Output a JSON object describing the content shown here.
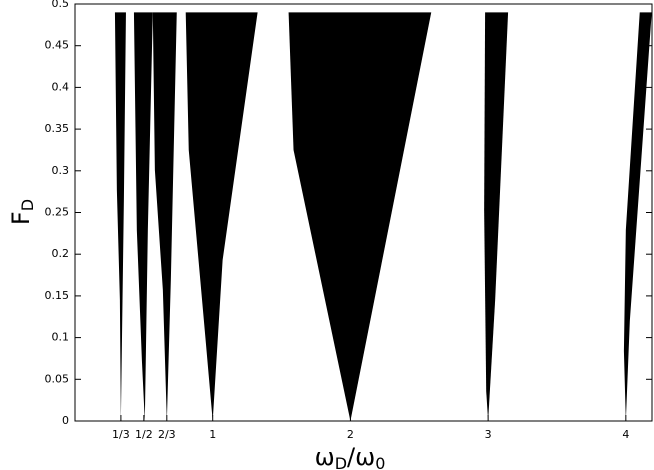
{
  "chart_data": {
    "type": "region",
    "ylabel": {
      "base": "F",
      "sub": "D"
    },
    "xlabel": [
      {
        "base": "ω",
        "sub": "D"
      },
      {
        "base": "/ω",
        "sub": "0"
      }
    ],
    "xlim": [
      0,
      4.19
    ],
    "ylim": [
      0,
      0.5
    ],
    "xticks": [
      {
        "value": 0.3333,
        "label": "1/3"
      },
      {
        "value": 0.5,
        "label": "1/2"
      },
      {
        "value": 0.6667,
        "label": "2/3"
      },
      1,
      2,
      3,
      4
    ],
    "yticks": [
      0,
      0.05,
      0.1,
      0.15,
      0.2,
      0.25,
      0.3,
      0.35,
      0.4,
      0.45,
      0.5
    ],
    "series": [
      {
        "color": "#000000",
        "x": [
          0.333,
          0.355,
          0.37,
          0.29,
          0.304,
          0.326
        ],
        "y": [
          0,
          0.265,
          0.49,
          0.49,
          0.277,
          0.145
        ]
      },
      {
        "color": "#000000",
        "x": [
          0.507,
          0.529,
          0.565,
          0.428,
          0.449,
          0.486
        ],
        "y": [
          0,
          0.229,
          0.49,
          0.49,
          0.229,
          0.072
        ]
      },
      {
        "color": "#000000",
        "x": [
          0.667,
          0.696,
          0.739,
          0.565,
          0.58,
          0.638
        ],
        "y": [
          0,
          0.169,
          0.49,
          0.49,
          0.301,
          0.157
        ]
      },
      {
        "color": "#000000",
        "x": [
          1.0,
          1.072,
          1.326,
          0.804,
          0.826,
          0.949
        ],
        "y": [
          0,
          0.193,
          0.49,
          0.49,
          0.325,
          0.096
        ]
      },
      {
        "color": "#000000",
        "x": [
          2.0,
          2.587,
          1.551,
          1.587
        ],
        "y": [
          0,
          0.49,
          0.49,
          0.325
        ]
      },
      {
        "color": "#000000",
        "x": [
          3.0,
          3.051,
          3.145,
          2.978,
          2.971,
          2.986
        ],
        "y": [
          0,
          0.145,
          0.49,
          0.49,
          0.253,
          0.036
        ]
      },
      {
        "color": "#000000",
        "x": [
          4.0,
          4.029,
          4.188,
          4.101,
          4.0,
          3.986
        ],
        "y": [
          0,
          0.12,
          0.49,
          0.49,
          0.229,
          0.084
        ]
      }
    ]
  }
}
